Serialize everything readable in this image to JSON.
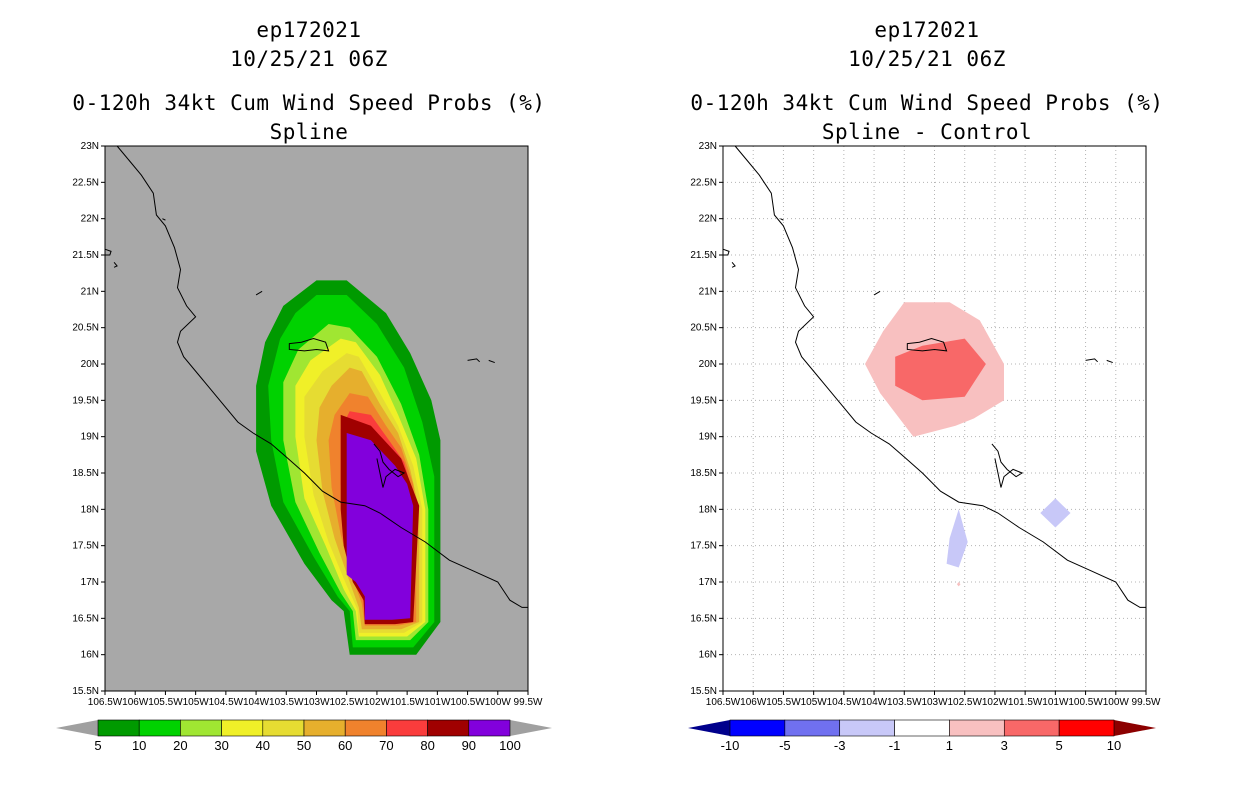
{
  "left": {
    "storm_id": "ep172021",
    "datetime": "10/25/21 06Z",
    "product": "0-120h 34kt Cum Wind Speed Probs (%)",
    "subtitle": "Spline",
    "lat_labels": [
      "23N",
      "22.5N",
      "22N",
      "21.5N",
      "21N",
      "20.5N",
      "20N",
      "19.5N",
      "19N",
      "18.5N",
      "18N",
      "17.5N",
      "17N",
      "16.5N",
      "16N",
      "15.5N"
    ],
    "lon_labels": [
      "106.5W",
      "106W",
      "105.5W",
      "105W",
      "104.5W",
      "104W",
      "103.5W",
      "103W",
      "102.5W",
      "102W",
      "101.5W",
      "101W",
      "100.5W",
      "100W",
      "99.5W"
    ],
    "legend": {
      "colors": [
        "#009a00",
        "#00d200",
        "#a0e632",
        "#f0f028",
        "#e6dc32",
        "#e6af2d",
        "#f0822d",
        "#fa3c3c",
        "#a00000",
        "#8200dc"
      ],
      "labels": [
        "5",
        "10",
        "20",
        "30",
        "40",
        "50",
        "60",
        "70",
        "80",
        "90",
        "100"
      ],
      "arrow_low": "#a0a0a0",
      "arrow_high": "#a0a0a0"
    },
    "background": "#a8a8a8"
  },
  "right": {
    "storm_id": "ep172021",
    "datetime": "10/25/21 06Z",
    "product": "0-120h 34kt Cum Wind Speed Probs (%)",
    "subtitle": "Spline - Control",
    "lat_labels": [
      "23N",
      "22.5N",
      "22N",
      "21.5N",
      "21N",
      "20.5N",
      "20N",
      "19.5N",
      "19N",
      "18.5N",
      "18N",
      "17.5N",
      "17N",
      "16.5N",
      "16N",
      "15.5N"
    ],
    "lon_labels": [
      "106.5W",
      "106W",
      "105.5W",
      "105W",
      "104.5W",
      "104W",
      "103.5W",
      "103W",
      "102.5W",
      "102W",
      "101.5W",
      "101W",
      "100.5W",
      "100W",
      "99.5W"
    ],
    "legend": {
      "colors": [
        "#0000ff",
        "#7070f0",
        "#c8c8f8",
        "#ffffff",
        "#f8c0c0",
        "#f86868",
        "#ff0000"
      ],
      "labels": [
        "-10",
        "-5",
        "-3",
        "-1",
        "1",
        "3",
        "5",
        "10"
      ],
      "arrow_low": "#00008c",
      "arrow_high": "#8c0000"
    },
    "background": "#ffffff"
  }
}
